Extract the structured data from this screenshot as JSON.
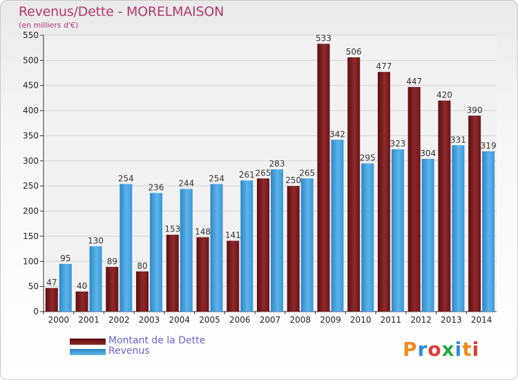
{
  "title": "Revenus/Dette - MORELMAISON",
  "subtitle": "(en milliers d'€)",
  "logo_text": "Proxiti",
  "colors": {
    "debt": "#7a1a1c",
    "revenue": "#3d9ad8",
    "title": "#b23a6f"
  },
  "chart_data": {
    "type": "bar",
    "categories": [
      "2000",
      "2001",
      "2002",
      "2003",
      "2004",
      "2005",
      "2006",
      "2007",
      "2008",
      "2009",
      "2010",
      "2011",
      "2012",
      "2013",
      "2014"
    ],
    "series": [
      {
        "name": "Montant de la Dette",
        "values": [
          47,
          40,
          89,
          80,
          153,
          148,
          141,
          265,
          250,
          533,
          506,
          477,
          447,
          420,
          390
        ]
      },
      {
        "name": "Revenus",
        "values": [
          95,
          130,
          254,
          236,
          244,
          254,
          261,
          283,
          265,
          342,
          295,
          323,
          304,
          331,
          319
        ]
      }
    ],
    "ylim": [
      0,
      550
    ],
    "yticks": [
      0,
      50,
      100,
      150,
      200,
      250,
      300,
      350,
      400,
      450,
      500,
      550
    ],
    "grid": true,
    "legend_position": "bottom-left"
  }
}
